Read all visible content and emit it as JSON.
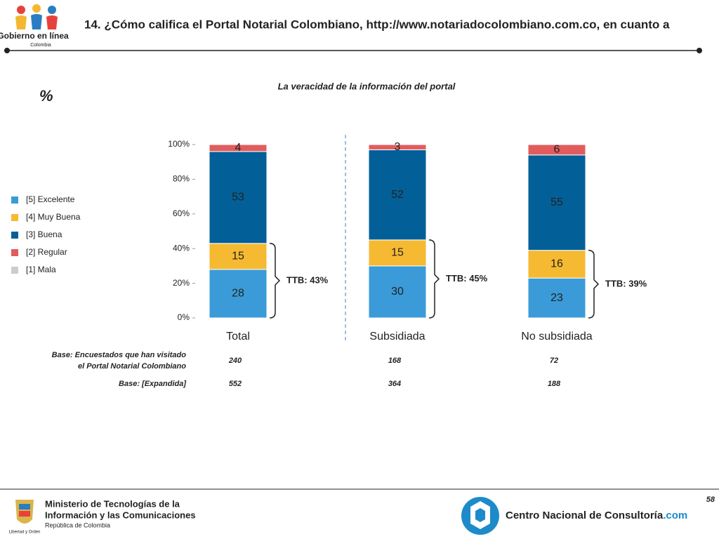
{
  "header": {
    "title": "14. ¿Cómo califica el Portal Notarial Colombiano, http://www.notariadocolombiano.com.co, en cuanto a",
    "logo_text": "Gobierno en línea",
    "logo_sub": "Colombia"
  },
  "chart_data": {
    "type": "stacked_bar",
    "title": "La veracidad de la información del portal",
    "unit_label": "%",
    "categories": [
      "Total",
      "Subsidiada",
      "No subsidiada"
    ],
    "series": [
      {
        "name": "[5] Excelente",
        "color": "#3b9bd8",
        "values": [
          28,
          30,
          23
        ]
      },
      {
        "name": "[4] Muy Buena",
        "color": "#f6b932",
        "values": [
          15,
          15,
          16
        ]
      },
      {
        "name": "[3] Buena",
        "color": "#035f98",
        "values": [
          53,
          52,
          55
        ]
      },
      {
        "name": "[2] Regular",
        "color": "#e25c5e",
        "values": [
          4,
          3,
          6
        ]
      },
      {
        "name": "[1] Mala",
        "color": "#cccccc",
        "values": [
          0,
          0,
          0
        ]
      }
    ],
    "annotations": [
      "TTB: 43%",
      "TTB: 45%",
      "TTB: 39%"
    ],
    "ylim": [
      0,
      100
    ],
    "yticks": [
      {
        "value": 0,
        "label": "0%"
      },
      {
        "value": 20,
        "label": "20%"
      },
      {
        "value": 40,
        "label": "40%"
      },
      {
        "value": 60,
        "label": "60%"
      },
      {
        "value": 80,
        "label": "80%"
      },
      {
        "value": 100,
        "label": "100%"
      }
    ]
  },
  "base_table": {
    "rows": [
      {
        "label_lines": [
          "Base: Encuestados que han visitado",
          "el Portal Notarial Colombiano"
        ],
        "values": [
          240,
          168,
          72
        ]
      },
      {
        "label_lines": [
          "Base: [Expandida]"
        ],
        "values": [
          552,
          364,
          188
        ]
      }
    ]
  },
  "footer": {
    "page": "58",
    "ministry_lines": [
      "Ministerio de Tecnologías de la",
      "Información y las Comunicaciones"
    ],
    "ministry_sub": "República de Colombia",
    "motto": "Libertad y Orden",
    "cnc_main": "Centro Nacional de Consultoría",
    "cnc_suffix": ".com"
  }
}
